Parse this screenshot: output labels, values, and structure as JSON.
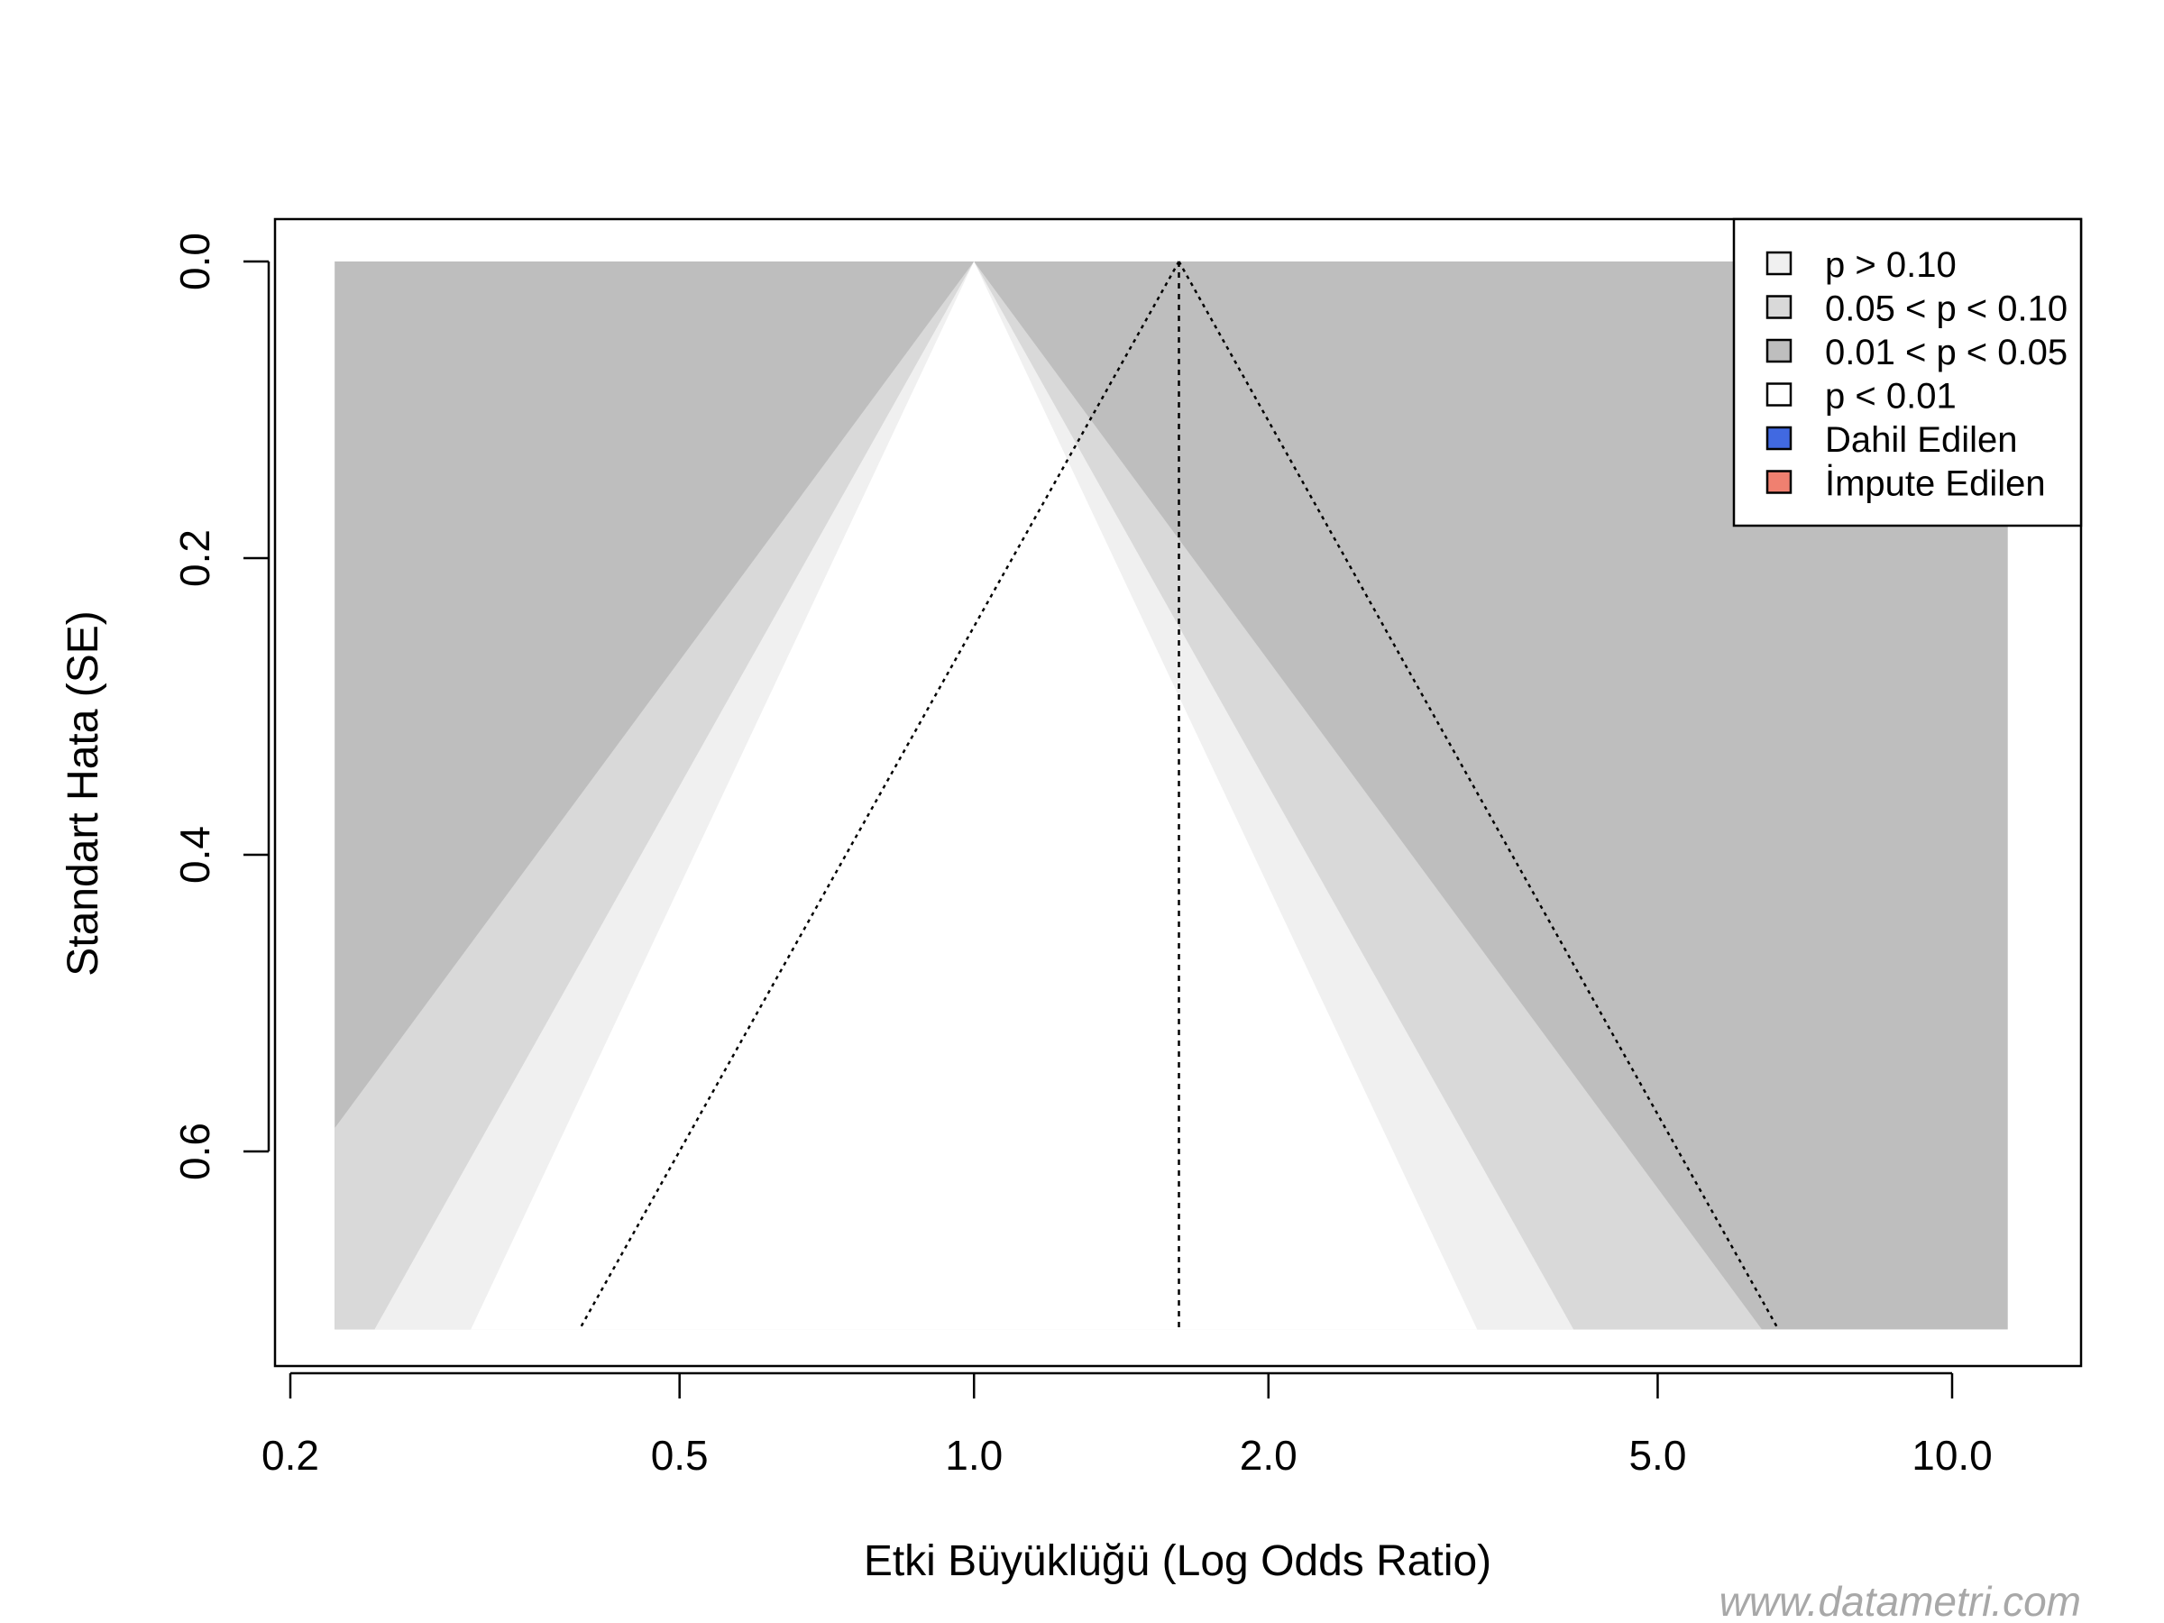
{
  "chart_data": {
    "type": "contour-enhanced funnel plot",
    "xlabel": "Etki Büyüklüğü (Log Odds Ratio)",
    "ylabel": "Standart Hata (SE)",
    "x_scale": "log",
    "x_ticks": [
      0.2,
      0.5,
      1.0,
      2.0,
      5.0,
      10.0
    ],
    "x_tick_labels": [
      "0.2",
      "0.5",
      "1.0",
      "2.0",
      "5.0",
      "10.0"
    ],
    "y_ticks": [
      0.0,
      0.2,
      0.4,
      0.6
    ],
    "y_tick_labels": [
      "0.0",
      "0.2",
      "0.4",
      "0.6"
    ],
    "y_reversed": true,
    "xlim": [
      0.2,
      12.5
    ],
    "ylim": [
      0.72,
      0.0
    ],
    "se_max": 0.72,
    "shaded_region_xlim": [
      0.222,
      11.4
    ],
    "null_effect": 1.0,
    "pooled_estimate": 1.62,
    "contours": [
      {
        "label": "p > 0.10",
        "z": 1.645,
        "color": "#ffffff"
      },
      {
        "label": "0.05 < p < 0.10",
        "z": 1.96,
        "color": "#f0f0f0"
      },
      {
        "label": "0.01 < p < 0.05",
        "z": 2.576,
        "color": "#d9d9d9"
      },
      {
        "label": "p < 0.01",
        "color": "#bebebe"
      }
    ],
    "legend": {
      "position": "top-right",
      "entries": [
        {
          "label": "p > 0.10",
          "color": "#f0f0f0"
        },
        {
          "label": "0.05 < p < 0.10",
          "color": "#d9d9d9"
        },
        {
          "label": "0.01 < p < 0.05",
          "color": "#bebebe"
        },
        {
          "label": "p < 0.01",
          "color": "#ffffff"
        },
        {
          "label": "Dahil Edilen",
          "color": "#4169e1"
        },
        {
          "label": "İmpute Edilen",
          "color": "#f08070"
        }
      ]
    },
    "points": [],
    "grid": false
  },
  "watermark": "www.datametri.com"
}
